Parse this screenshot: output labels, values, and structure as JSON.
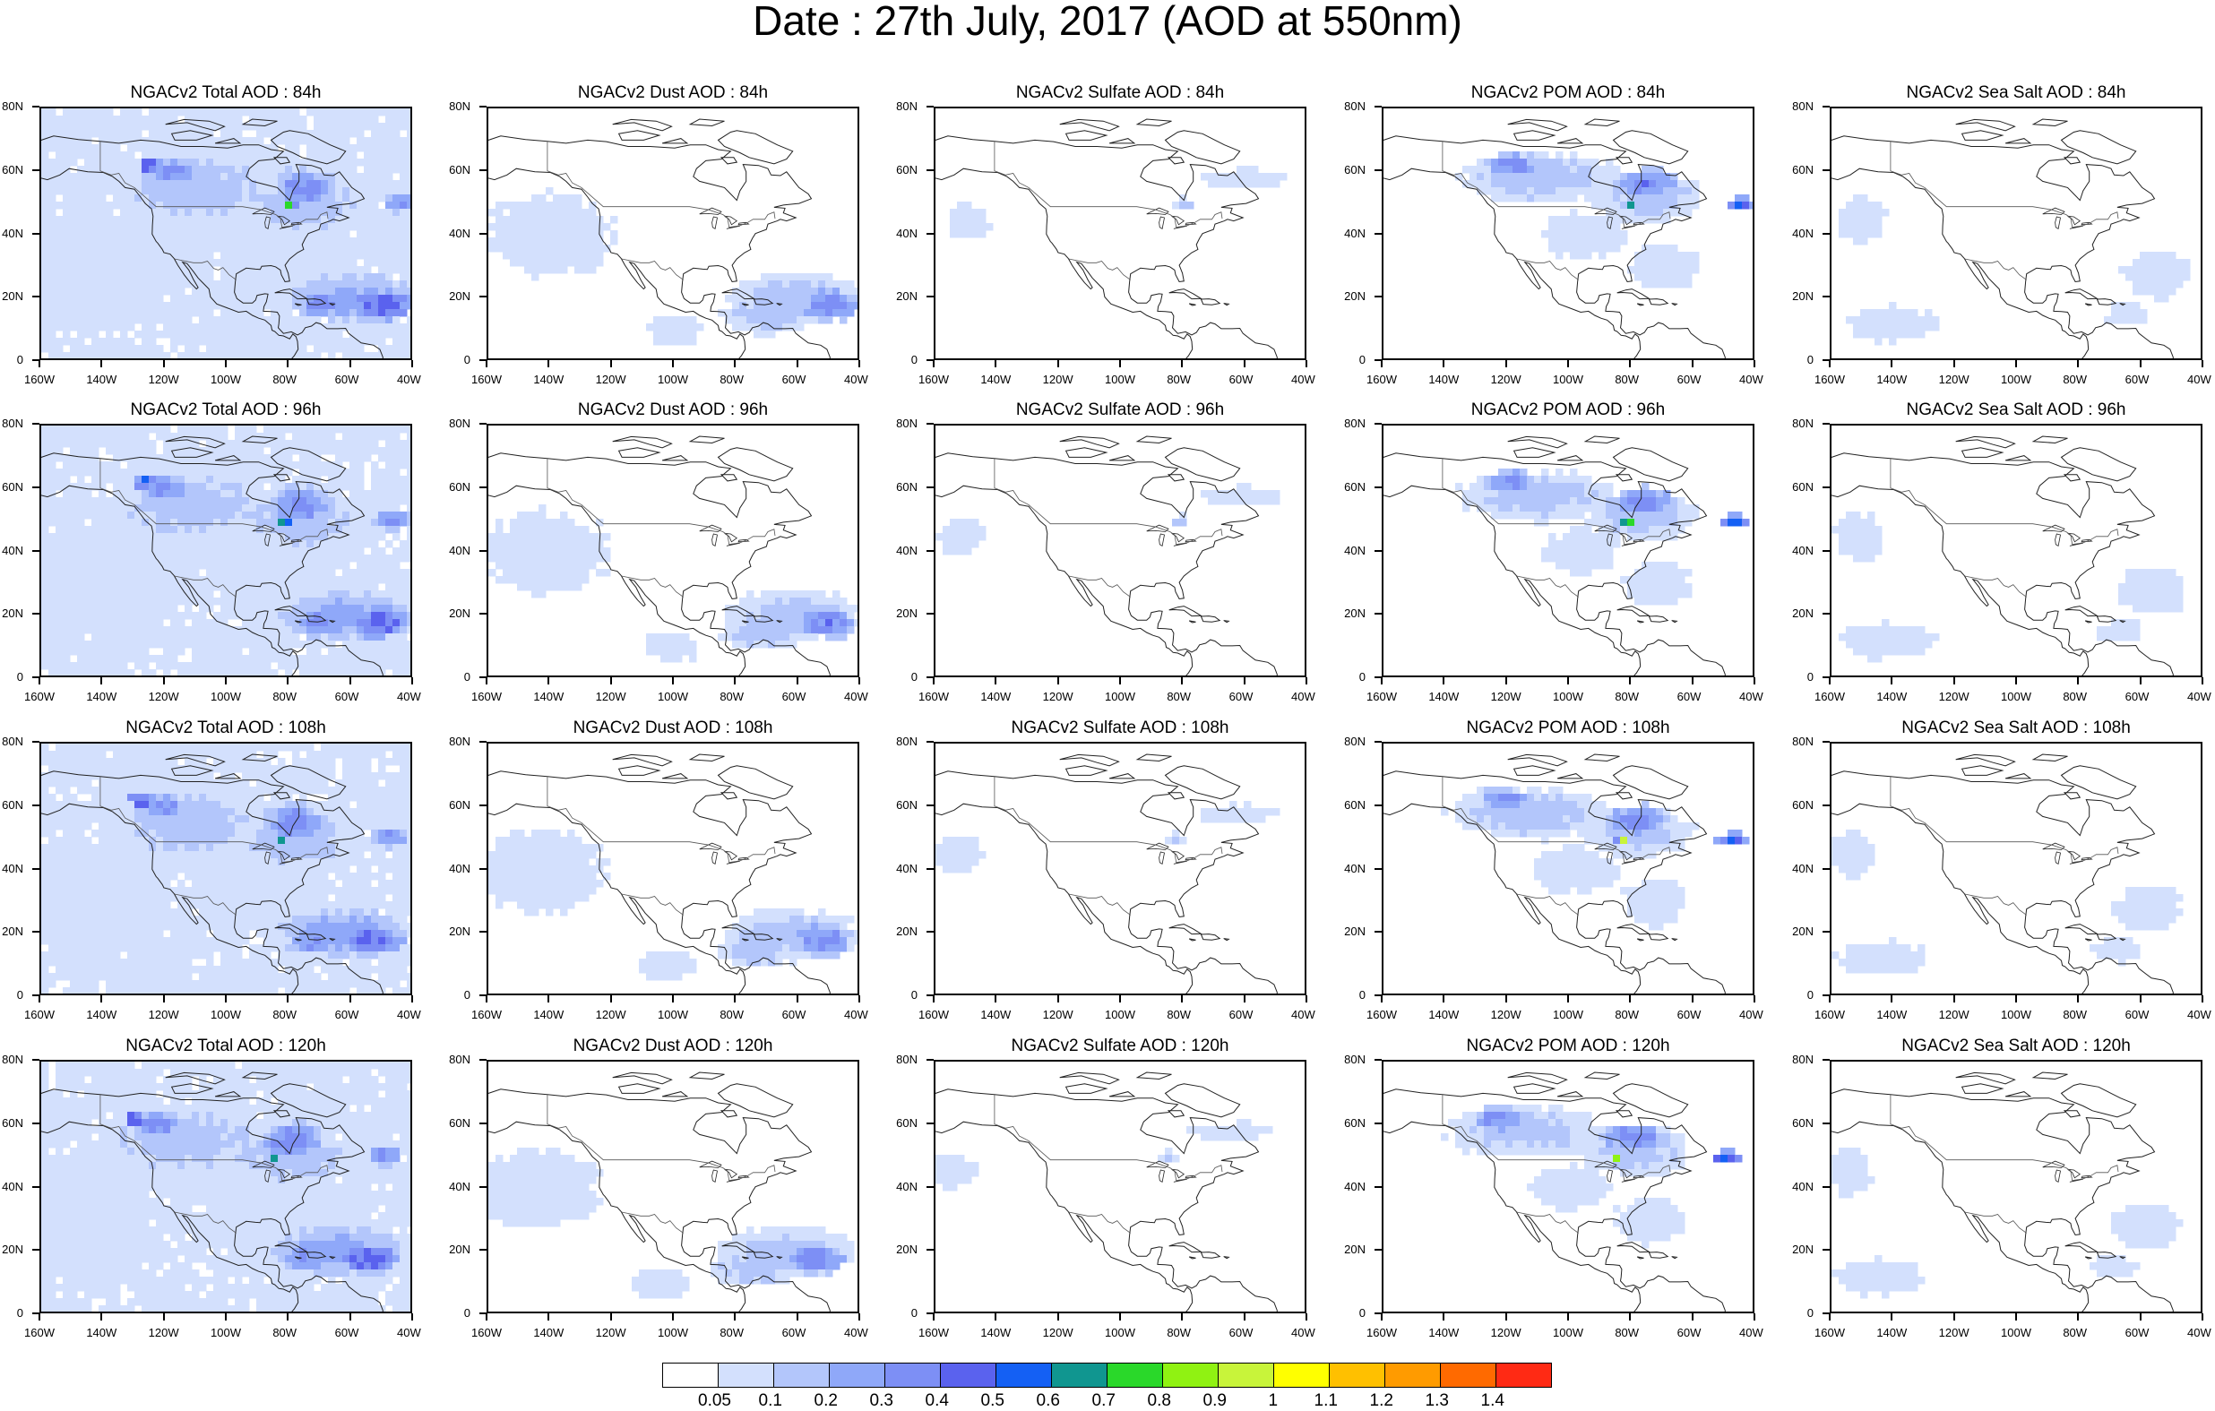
{
  "title": "Date : 27th July, 2017 (AOD at 550nm)",
  "columns": [
    {
      "species": "Total",
      "titles": [
        "NGACv2 Total AOD : 84h",
        "NGACv2 Total AOD : 96h",
        "NGACv2 Total AOD : 108h",
        "NGACv2 Total AOD : 120h"
      ]
    },
    {
      "species": "Dust",
      "titles": [
        "NGACv2 Dust AOD : 84h",
        "NGACv2 Dust AOD : 96h",
        "NGACv2 Dust AOD : 108h",
        "NGACv2 Dust AOD : 120h"
      ]
    },
    {
      "species": "Sulfate",
      "titles": [
        "NGACv2 Sulfate AOD : 84h",
        "NGACv2 Sulfate AOD : 96h",
        "NGACv2 Sulfate AOD : 108h",
        "NGACv2 Sulfate AOD : 120h"
      ]
    },
    {
      "species": "POM",
      "titles": [
        "NGACv2 POM AOD : 84h",
        "NGACv2 POM AOD : 96h",
        "NGACv2 POM AOD : 108h",
        "NGACv2 POM AOD : 120h"
      ]
    },
    {
      "species": "Sea Salt",
      "titles": [
        "NGACv2 Sea Salt AOD : 84h",
        "NGACv2 Sea Salt AOD : 96h",
        "NGACv2 Sea Salt AOD : 108h",
        "NGACv2 Sea Salt  AOD : 120h"
      ]
    }
  ],
  "lat_labels": [
    "80N",
    "60N",
    "40N",
    "20N",
    "0"
  ],
  "lon_labels": [
    "160W",
    "140W",
    "120W",
    "100W",
    "80W",
    "60W",
    "40W"
  ],
  "colorbar": {
    "colors": [
      "#ffffff",
      "#d3e0fd",
      "#b3c6fb",
      "#8fa8f9",
      "#7d8ff5",
      "#5a62ee",
      "#1460f4",
      "#109690",
      "#2ad82a",
      "#90f212",
      "#c8f43a",
      "#ffff00",
      "#ffc000",
      "#ff9b00",
      "#ff6a00",
      "#ff2a14"
    ],
    "labels": [
      "0.05",
      "0.1",
      "0.2",
      "0.3",
      "0.4",
      "0.5",
      "0.6",
      "0.7",
      "0.8",
      "0.9",
      "1",
      "1.1",
      "1.2",
      "1.3",
      "1.4"
    ]
  },
  "map_legend": {
    "land_outline": "#555555",
    "coast_color": "#222222"
  }
}
